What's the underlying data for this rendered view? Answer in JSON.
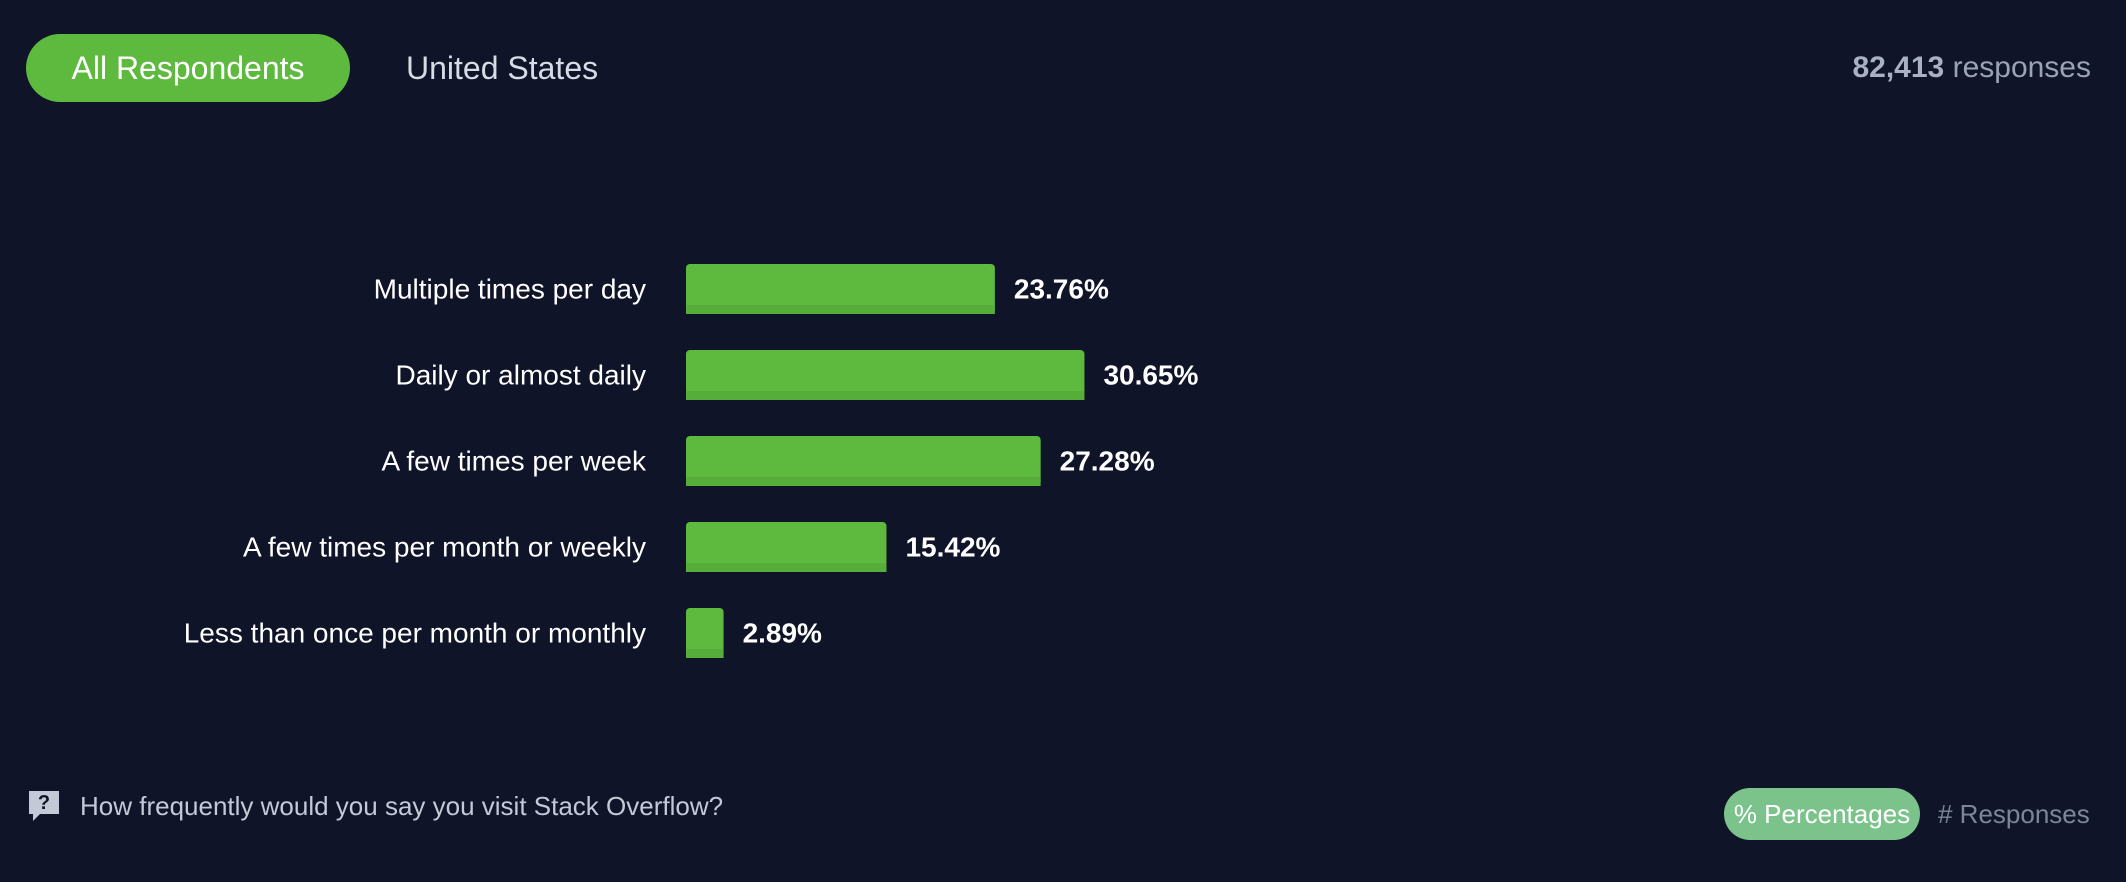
{
  "tabs": [
    {
      "label": "All Respondents",
      "active": true
    },
    {
      "label": "United States",
      "active": false
    }
  ],
  "responses": {
    "count": "82,413",
    "label": "responses"
  },
  "chart_data": {
    "type": "bar",
    "orientation": "horizontal",
    "categories": [
      "Multiple times per day",
      "Daily or almost daily",
      "A few times per week",
      "A few times per month or weekly",
      "Less than once per month or monthly"
    ],
    "values": [
      23.76,
      30.65,
      27.28,
      15.42,
      2.89
    ],
    "value_labels": [
      "23.76%",
      "30.65%",
      "27.28%",
      "15.42%",
      "2.89%"
    ],
    "unit": "%",
    "xlim": [
      0,
      100
    ],
    "title": "",
    "xlabel": "",
    "ylabel": "",
    "bar_color": "#5eb93f",
    "grid": false
  },
  "footer": {
    "question": "How frequently would you say you visit Stack Overflow?",
    "icon": "question-bubble-icon"
  },
  "toggle": {
    "percentages_label": "% Percentages",
    "responses_label": "# Responses",
    "active": "percentages"
  },
  "colors": {
    "background": "#0f1429",
    "accent": "#5eb93f",
    "toggle_active": "#7bc38b"
  }
}
